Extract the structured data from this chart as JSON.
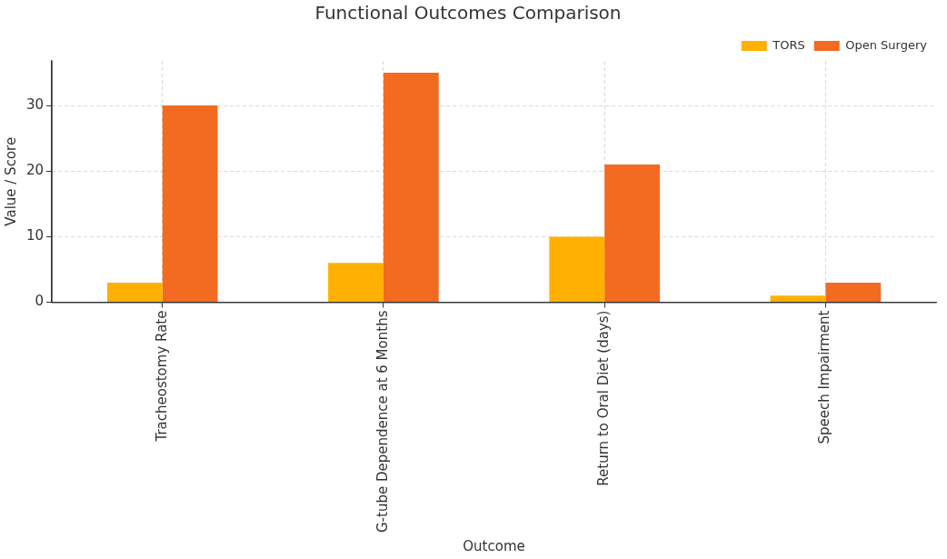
{
  "chart_data": {
    "type": "bar",
    "title": "Functional Outcomes Comparison",
    "xlabel": "Outcome",
    "ylabel": "Value / Score",
    "categories": [
      "Tracheostomy Rate",
      "G-tube Dependence at 6 Months",
      "Return to Oral Diet (days)",
      "Speech Impairment"
    ],
    "series": [
      {
        "name": "TORS",
        "color": "#ffb000",
        "values": [
          3,
          6,
          10,
          1
        ]
      },
      {
        "name": "Open Surgery",
        "color": "#f26b21",
        "values": [
          30,
          35,
          21,
          3
        ]
      }
    ],
    "ylim": [
      0,
      36.8
    ],
    "yticks": [
      0,
      10,
      20,
      30
    ],
    "grid": true,
    "legend": "top right"
  }
}
